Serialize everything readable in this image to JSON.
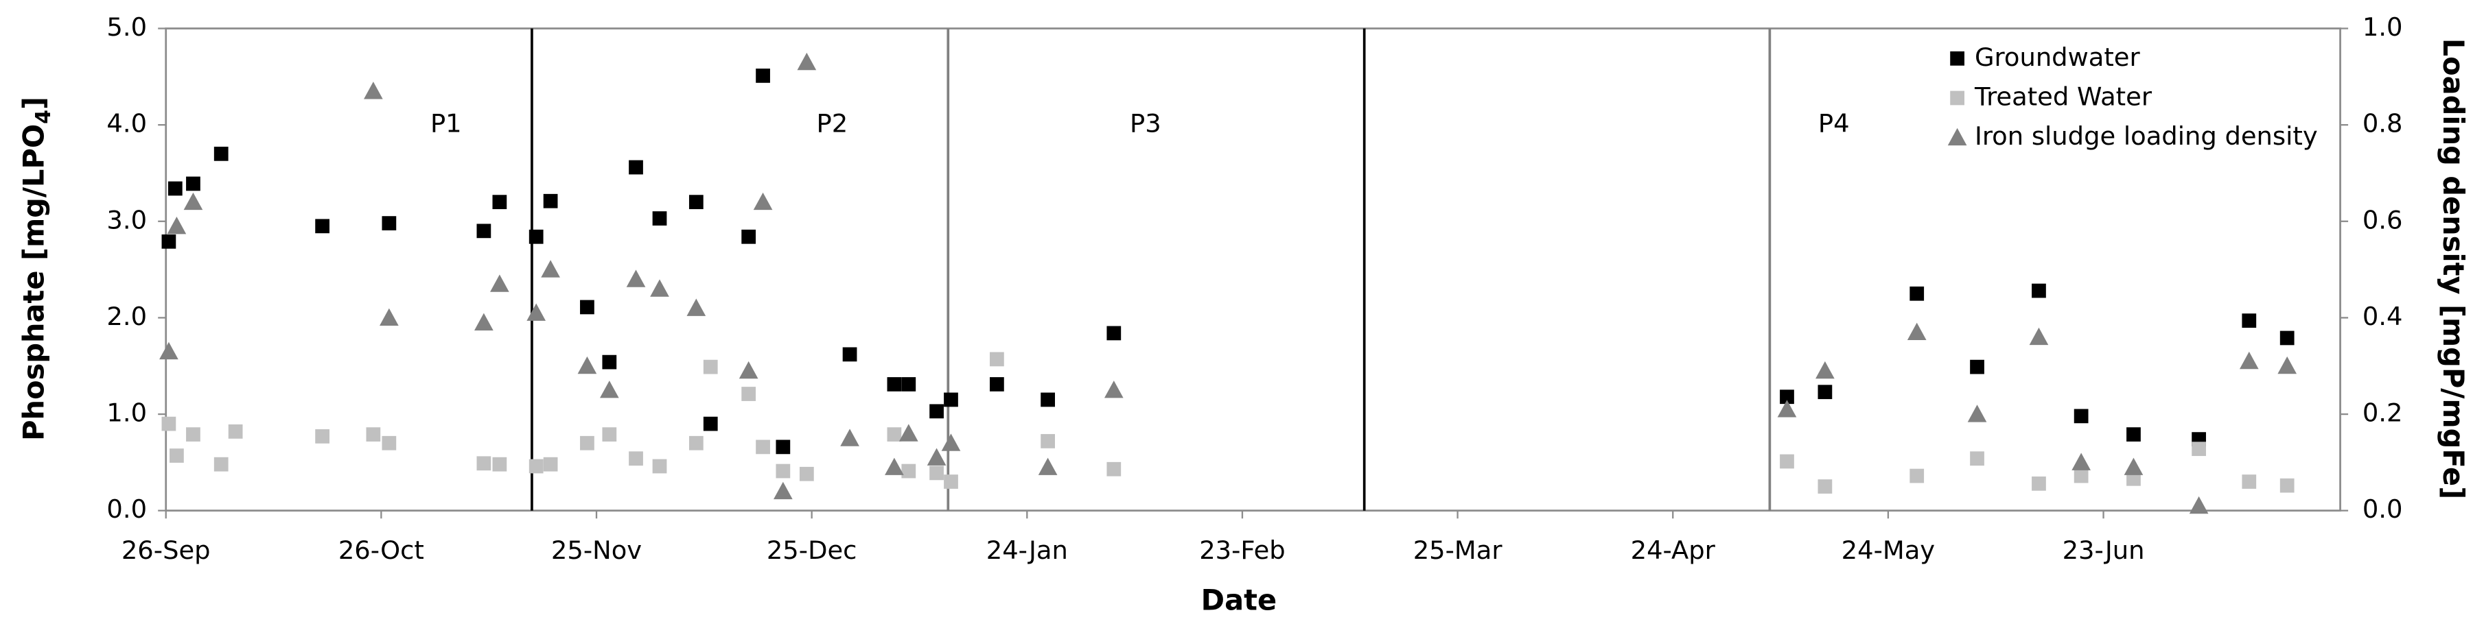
{
  "chart_data": {
    "type": "scatter",
    "xlabel": "Date",
    "ylabel": [
      "Phosphate [mg/LPO",
      "4",
      "]"
    ],
    "y2label": "Loading density [mgP/mgFe]",
    "xlim": [
      0,
      303
    ],
    "xticks": [
      {
        "value": 0,
        "label": "26-Sep"
      },
      {
        "value": 30,
        "label": "26-Oct"
      },
      {
        "value": 60,
        "label": "25-Nov"
      },
      {
        "value": 90,
        "label": "25-Dec"
      },
      {
        "value": 120,
        "label": "24-Jan"
      },
      {
        "value": 150,
        "label": "23-Feb"
      },
      {
        "value": 180,
        "label": "25-Mar"
      },
      {
        "value": 210,
        "label": "24-Apr"
      },
      {
        "value": 240,
        "label": "24-May"
      },
      {
        "value": 270,
        "label": "23-Jun"
      }
    ],
    "ylim": [
      0,
      5
    ],
    "yticks": [
      {
        "value": 0,
        "label": "0.0"
      },
      {
        "value": 1,
        "label": "1.0"
      },
      {
        "value": 2,
        "label": "2.0"
      },
      {
        "value": 3,
        "label": "3.0"
      },
      {
        "value": 4,
        "label": "4.0"
      },
      {
        "value": 5,
        "label": "5.0"
      }
    ],
    "y2lim": [
      0,
      1
    ],
    "y2ticks": [
      {
        "value": 0,
        "label": "0.0"
      },
      {
        "value": 0.2,
        "label": "0.2"
      },
      {
        "value": 0.4,
        "label": "0.4"
      },
      {
        "value": 0.6,
        "label": "0.6"
      },
      {
        "value": 0.8,
        "label": "0.8"
      },
      {
        "value": 1,
        "label": "1.0"
      }
    ],
    "grid": false,
    "legend": "top-right",
    "dividers": [
      {
        "x": 51,
        "color": "#000000"
      },
      {
        "x": 109,
        "color": "#808080"
      },
      {
        "x": 167,
        "color": "#000000"
      },
      {
        "x": 223.5,
        "color": "#808080"
      }
    ],
    "annotations": [
      "P1",
      "P2",
      "P3",
      "P4"
    ],
    "series": [
      {
        "name": "Groundwater",
        "color": "#000000",
        "marker": "square",
        "x": [
          0.4,
          1.3,
          3.8,
          7.7,
          21.8,
          31.1,
          44.3,
          46.5,
          51.6,
          53.6,
          58.7,
          61.8,
          65.5,
          68.8,
          73.9,
          75.9,
          81.2,
          83.2,
          86.0,
          95.3,
          101.5,
          103.5,
          107.4,
          109.4,
          115.8,
          122.9,
          132.1,
          225.9,
          231.2,
          244.0,
          252.4,
          261.0,
          266.9,
          274.2,
          283.3,
          290.3,
          295.6
        ],
        "values": [
          2.79,
          3.34,
          3.39,
          3.7,
          2.95,
          2.98,
          2.9,
          3.2,
          2.84,
          3.21,
          2.11,
          1.54,
          3.56,
          3.03,
          3.2,
          0.9,
          2.84,
          4.51,
          0.66,
          1.62,
          1.31,
          1.31,
          1.03,
          1.15,
          1.31,
          1.15,
          1.84,
          1.18,
          1.23,
          2.25,
          1.49,
          2.28,
          0.98,
          0.79,
          0.74,
          1.97,
          1.79
        ]
      },
      {
        "name": "Treated Water",
        "color": "#c0c0c0",
        "marker": "square",
        "x": [
          0.4,
          1.5,
          3.8,
          7.7,
          9.7,
          21.8,
          28.9,
          31.1,
          44.3,
          46.5,
          51.6,
          53.6,
          58.7,
          61.8,
          65.5,
          68.8,
          73.9,
          75.9,
          81.2,
          83.2,
          86.0,
          89.3,
          101.5,
          103.5,
          107.4,
          109.4,
          115.8,
          122.9,
          132.1,
          225.9,
          231.2,
          244.0,
          252.4,
          261.0,
          266.9,
          274.2,
          283.3,
          290.3,
          295.6
        ],
        "values": [
          0.9,
          0.57,
          0.79,
          0.48,
          0.82,
          0.77,
          0.79,
          0.7,
          0.49,
          0.48,
          0.46,
          0.48,
          0.7,
          0.79,
          0.54,
          0.46,
          0.7,
          1.49,
          1.21,
          0.66,
          0.41,
          0.38,
          0.79,
          0.41,
          0.39,
          0.3,
          1.57,
          0.72,
          0.43,
          0.51,
          0.25,
          0.36,
          0.54,
          0.28,
          0.36,
          0.33,
          0.64,
          0.3,
          0.26
        ]
      },
      {
        "name": "Iron sludge loading density",
        "color": "#808080",
        "marker": "triangle",
        "axis": "y2",
        "x": [
          0.4,
          1.5,
          3.8,
          28.9,
          31.1,
          44.3,
          46.5,
          51.6,
          53.6,
          58.7,
          61.8,
          65.5,
          68.8,
          73.9,
          81.2,
          83.2,
          86.0,
          89.3,
          95.3,
          101.5,
          103.5,
          107.4,
          109.4,
          122.9,
          132.1,
          225.9,
          231.2,
          244.0,
          252.4,
          261.0,
          266.9,
          274.2,
          283.3,
          290.3,
          295.6
        ],
        "values": [
          0.33,
          0.59,
          0.64,
          0.87,
          0.4,
          0.39,
          0.47,
          0.41,
          0.5,
          0.3,
          0.25,
          0.48,
          0.46,
          0.42,
          0.29,
          0.64,
          0.04,
          0.93,
          0.15,
          0.09,
          0.16,
          0.11,
          0.14,
          0.09,
          0.25,
          0.21,
          0.29,
          0.37,
          0.2,
          0.36,
          0.1,
          0.09,
          0.01,
          0.31,
          0.3
        ]
      }
    ]
  }
}
